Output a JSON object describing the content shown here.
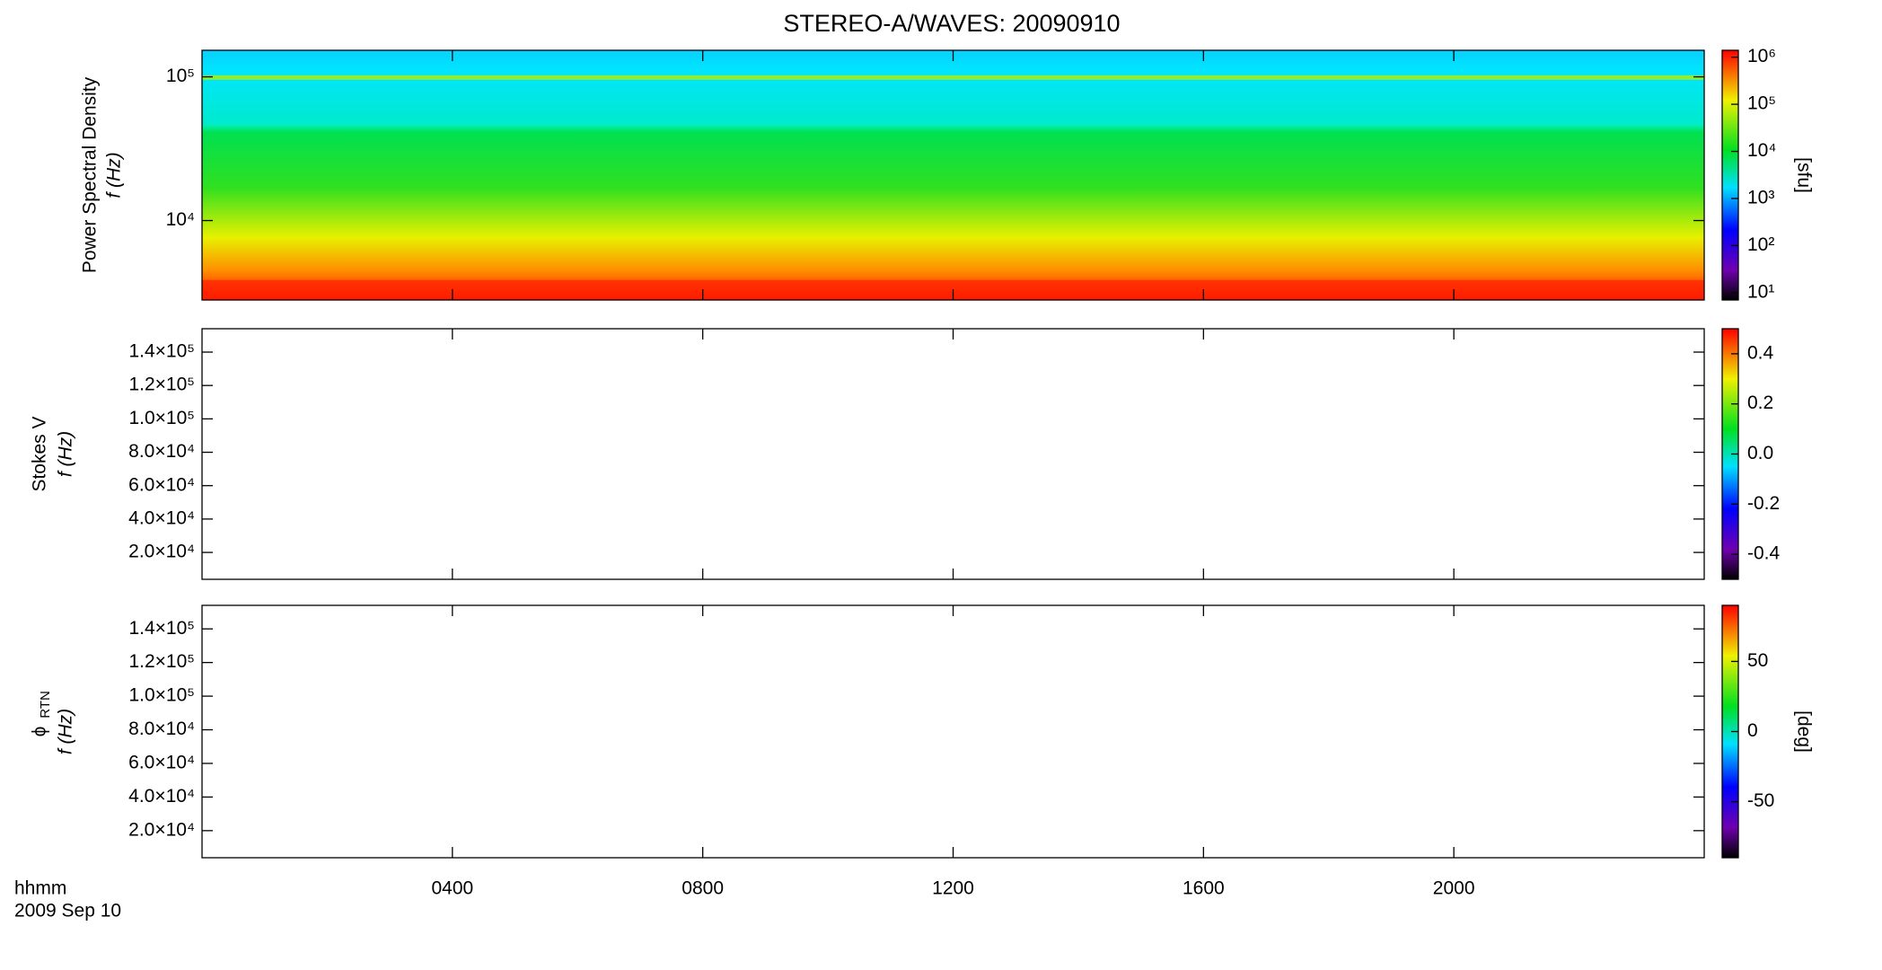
{
  "figure": {
    "title": "STEREO-A/WAVES: 20090910",
    "x_label": "hhmm",
    "date": "2009 Sep 10",
    "xlim": [
      0,
      24
    ],
    "xticks": [
      {
        "value": 4,
        "label": "0400"
      },
      {
        "value": 8,
        "label": "0800"
      },
      {
        "value": 12,
        "label": "1200"
      },
      {
        "value": 16,
        "label": "1600"
      },
      {
        "value": 20,
        "label": "2000"
      }
    ]
  },
  "chart_data": [
    {
      "type": "heatmap",
      "ylabel": [
        "Power Spectral Density",
        "f (Hz)"
      ],
      "ylog": true,
      "ylim": [
        2800,
        153000
      ],
      "yticks": [
        {
          "value": 100000,
          "label": "10⁵"
        },
        {
          "value": 10000,
          "label": "10⁴"
        }
      ],
      "colorbar": {
        "label": "[sfu]",
        "log": true,
        "lim": [
          7,
          1400000
        ],
        "ticks": [
          {
            "value": 10,
            "label": "10¹"
          },
          {
            "value": 100,
            "label": "10²"
          },
          {
            "value": 1000,
            "label": "10³"
          },
          {
            "value": 10000,
            "label": "10⁴"
          },
          {
            "value": 100000,
            "label": "10⁵"
          },
          {
            "value": 1000000,
            "label": "10⁶"
          }
        ]
      }
    },
    {
      "type": "heatmap",
      "ylabel": [
        "Stokes V",
        "f (Hz)"
      ],
      "ylog": false,
      "ylim": [
        3900,
        154000
      ],
      "yticks": [
        {
          "value": 20000,
          "label": "2.0×10⁴"
        },
        {
          "value": 40000,
          "label": "4.0×10⁴"
        },
        {
          "value": 60000,
          "label": "6.0×10⁴"
        },
        {
          "value": 80000,
          "label": "8.0×10⁴"
        },
        {
          "value": 100000,
          "label": "1.0×10⁵"
        },
        {
          "value": 120000,
          "label": "1.2×10⁵"
        },
        {
          "value": 140000,
          "label": "1.4×10⁵"
        }
      ],
      "colorbar": {
        "log": false,
        "lim": [
          -0.5,
          0.5
        ],
        "ticks": [
          -0.4,
          -0.2,
          {
            "value": 0,
            "label": "0.0"
          },
          0.2,
          0.4
        ]
      }
    },
    {
      "type": "heatmap",
      "ylabel": [
        "ϕ",
        "f (Hz)"
      ],
      "ylabel_subscript": "RTN",
      "ylog": false,
      "ylim": [
        3900,
        154000
      ],
      "yticks": [
        {
          "value": 20000,
          "label": "2.0×10⁴"
        },
        {
          "value": 40000,
          "label": "4.0×10⁴"
        },
        {
          "value": 60000,
          "label": "6.0×10⁴"
        },
        {
          "value": 80000,
          "label": "8.0×10⁴"
        },
        {
          "value": 100000,
          "label": "1.0×10⁵"
        },
        {
          "value": 120000,
          "label": "1.2×10⁵"
        },
        {
          "value": 140000,
          "label": "1.4×10⁵"
        }
      ],
      "colorbar": {
        "label": "[deg]",
        "log": false,
        "lim": [
          -90,
          90
        ],
        "ticks": [
          -50,
          0,
          50
        ]
      }
    }
  ]
}
